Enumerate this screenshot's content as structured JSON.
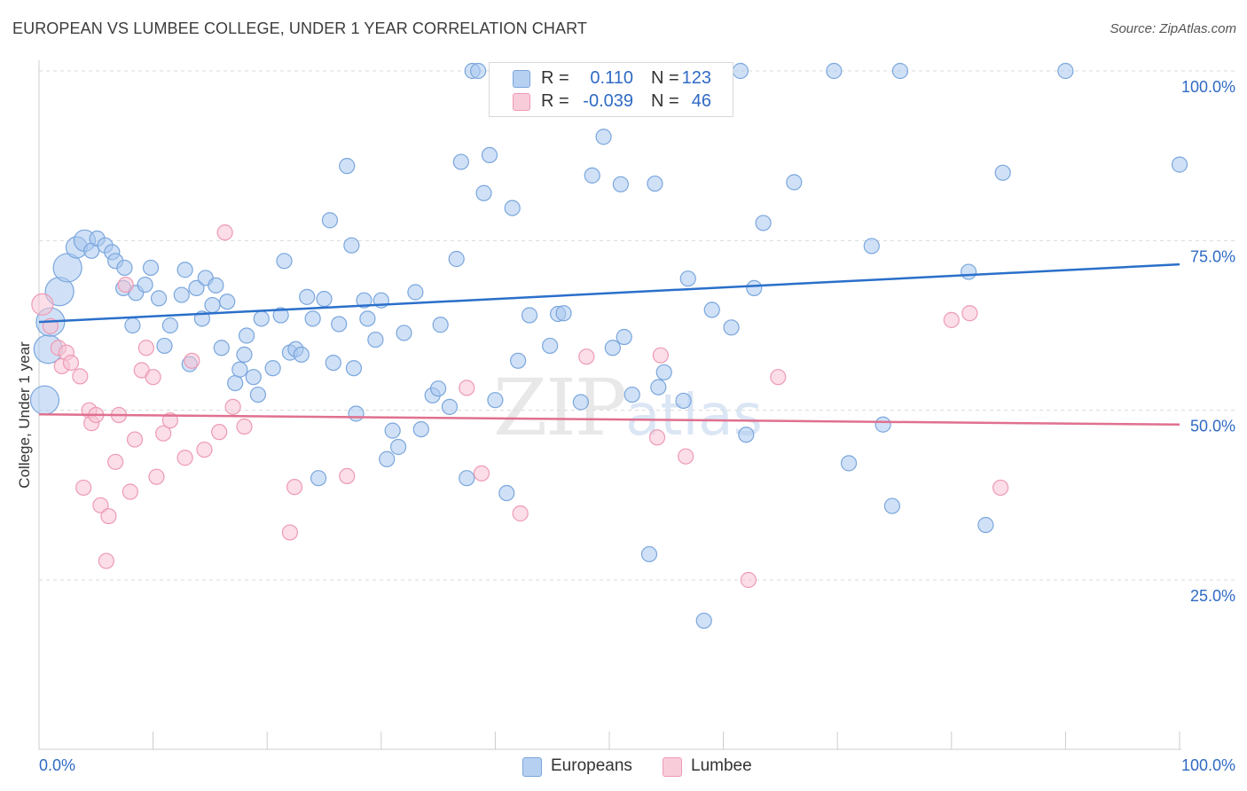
{
  "title": "EUROPEAN VS LUMBEE COLLEGE, UNDER 1 YEAR CORRELATION CHART",
  "source": "Source: ZipAtlas.com",
  "watermark": {
    "zip": "ZIP",
    "atlas": "atlas"
  },
  "legend": {
    "rows": [
      {
        "r_label": "R =",
        "r_value": "0.110",
        "n_label": "N =",
        "n_value": "123"
      },
      {
        "r_label": "R =",
        "r_value": "-0.039",
        "n_label": "N =",
        "n_value": "46"
      }
    ]
  },
  "bottom_legend": {
    "europeans": "Europeans",
    "lumbee": "Lumbee"
  },
  "colors": {
    "europeans_fill": "#a9c8f0",
    "europeans_stroke": "#7aa6dc",
    "europeans_line": "#2a6fca",
    "lumbee_fill": "#f7c3d3",
    "lumbee_stroke": "#ee9ab5",
    "lumbee_line": "#e0708f",
    "axis_label": "#2f6ac4",
    "grid": "#d9d9d9"
  },
  "chart_data": {
    "type": "scatter",
    "title": "EUROPEAN VS LUMBEE COLLEGE, UNDER 1 YEAR CORRELATION CHART",
    "xlabel": "",
    "ylabel": "College, Under 1 year",
    "xlim": [
      0,
      100
    ],
    "ylim": [
      0,
      105
    ],
    "x_tick_labels": [
      "0.0%",
      "100.0%"
    ],
    "y_tick_labels": [
      "25.0%",
      "50.0%",
      "75.0%",
      "100.0%"
    ],
    "y_ticks": [
      25,
      50,
      75,
      100
    ],
    "grid": "horizontal dashed",
    "legend_position": "top-center",
    "series": [
      {
        "name": "Europeans",
        "r": 0.11,
        "n": 123,
        "trend": {
          "x": [
            0,
            100
          ],
          "y": [
            63.0,
            71.5
          ]
        },
        "points": [
          [
            0.5,
            51.5,
            3
          ],
          [
            0.8,
            59,
            3
          ],
          [
            1.0,
            63,
            3
          ],
          [
            1.8,
            67.5,
            3
          ],
          [
            2.5,
            71,
            3
          ],
          [
            3.3,
            74,
            2
          ],
          [
            4.0,
            75,
            2
          ],
          [
            4.6,
            73.5,
            1
          ],
          [
            5.1,
            75.3,
            1
          ],
          [
            5.8,
            74.3,
            1
          ],
          [
            6.4,
            73.3,
            1
          ],
          [
            6.7,
            72,
            1
          ],
          [
            7.5,
            71,
            1
          ],
          [
            7.4,
            68,
            1
          ],
          [
            8.5,
            67.3,
            1
          ],
          [
            8.2,
            62.5,
            1
          ],
          [
            9.3,
            68.5,
            1
          ],
          [
            9.8,
            71,
            1
          ],
          [
            10.5,
            66.5,
            1
          ],
          [
            11.0,
            59.5,
            1
          ],
          [
            11.5,
            62.5,
            1
          ],
          [
            12.5,
            67,
            1
          ],
          [
            12.8,
            70.7,
            1
          ],
          [
            13.2,
            56.8,
            1
          ],
          [
            13.8,
            68,
            1
          ],
          [
            14.6,
            69.5,
            1
          ],
          [
            14.3,
            63.5,
            1
          ],
          [
            15.2,
            65.5,
            1
          ],
          [
            15.5,
            68.4,
            1
          ],
          [
            16.0,
            59.2,
            1
          ],
          [
            16.5,
            66,
            1
          ],
          [
            17.2,
            54,
            1
          ],
          [
            17.6,
            56,
            1
          ],
          [
            18.0,
            58.2,
            1
          ],
          [
            18.2,
            61,
            1
          ],
          [
            18.8,
            54.9,
            1
          ],
          [
            19.2,
            52.3,
            1
          ],
          [
            19.5,
            63.5,
            1
          ],
          [
            20.5,
            56.2,
            1
          ],
          [
            21.2,
            64,
            1
          ],
          [
            21.5,
            72,
            1
          ],
          [
            22.0,
            58.5,
            1
          ],
          [
            22.5,
            59,
            1
          ],
          [
            23.0,
            58.2,
            1
          ],
          [
            23.5,
            66.7,
            1
          ],
          [
            24.0,
            63.5,
            1
          ],
          [
            24.5,
            40,
            1
          ],
          [
            25.0,
            66.4,
            1
          ],
          [
            25.5,
            78,
            1
          ],
          [
            25.8,
            57,
            1
          ],
          [
            26.3,
            62.7,
            1
          ],
          [
            27.0,
            86,
            1
          ],
          [
            27.4,
            74.3,
            1
          ],
          [
            27.6,
            56.2,
            1
          ],
          [
            27.8,
            49.5,
            1
          ],
          [
            28.5,
            66.2,
            1
          ],
          [
            28.8,
            63.5,
            1
          ],
          [
            29.5,
            60.4,
            1
          ],
          [
            30.0,
            66.2,
            1
          ],
          [
            30.5,
            42.8,
            1
          ],
          [
            31.0,
            47,
            1
          ],
          [
            31.5,
            44.6,
            1
          ],
          [
            32.0,
            61.4,
            1
          ],
          [
            33.0,
            67.4,
            1
          ],
          [
            33.5,
            47.2,
            1
          ],
          [
            34.5,
            52.2,
            1
          ],
          [
            35.0,
            53.2,
            1
          ],
          [
            35.2,
            62.6,
            1
          ],
          [
            36.0,
            50.5,
            1
          ],
          [
            36.6,
            72.3,
            1
          ],
          [
            37.0,
            86.6,
            1
          ],
          [
            37.5,
            40,
            1
          ],
          [
            38.0,
            100,
            1
          ],
          [
            38.5,
            100,
            1
          ],
          [
            39.0,
            82,
            1
          ],
          [
            39.5,
            87.6,
            1
          ],
          [
            40.0,
            51.5,
            1
          ],
          [
            41.0,
            37.8,
            1
          ],
          [
            41.5,
            79.8,
            1
          ],
          [
            42.0,
            57.3,
            1
          ],
          [
            43.0,
            64,
            1
          ],
          [
            43.5,
            100,
            1
          ],
          [
            44.0,
            97,
            1
          ],
          [
            44.8,
            59.5,
            1
          ],
          [
            45.5,
            64.2,
            1
          ],
          [
            46.0,
            64.3,
            1
          ],
          [
            47.0,
            100,
            1
          ],
          [
            47.5,
            51.2,
            1
          ],
          [
            48.5,
            84.6,
            1
          ],
          [
            48.8,
            100,
            1
          ],
          [
            49.5,
            90.3,
            1
          ],
          [
            50.3,
            59.2,
            1
          ],
          [
            51.0,
            83.3,
            1
          ],
          [
            51.3,
            60.8,
            1
          ],
          [
            52.0,
            52.3,
            1
          ],
          [
            52.5,
            100,
            1
          ],
          [
            53.5,
            28.8,
            1
          ],
          [
            54.0,
            83.4,
            1
          ],
          [
            54.3,
            53.4,
            1
          ],
          [
            54.8,
            55.6,
            1
          ],
          [
            56.5,
            51.4,
            1
          ],
          [
            56.9,
            69.4,
            1
          ],
          [
            58.3,
            19,
            1
          ],
          [
            59.0,
            64.8,
            1
          ],
          [
            60.7,
            62.2,
            1
          ],
          [
            61.5,
            100,
            1
          ],
          [
            62.0,
            46.4,
            1
          ],
          [
            62.7,
            68,
            1
          ],
          [
            63.5,
            77.6,
            1
          ],
          [
            66.2,
            83.6,
            1
          ],
          [
            69.7,
            100,
            1
          ],
          [
            71.0,
            42.2,
            1
          ],
          [
            73.0,
            74.2,
            1
          ],
          [
            74.0,
            47.9,
            1
          ],
          [
            74.8,
            35.9,
            1
          ],
          [
            75.5,
            100,
            1
          ],
          [
            81.5,
            70.4,
            1
          ],
          [
            83.0,
            33.1,
            1
          ],
          [
            84.5,
            85,
            1
          ],
          [
            90.0,
            100,
            1
          ],
          [
            100.0,
            86.2,
            1
          ],
          [
            42.5,
            100,
            1
          ],
          [
            57.0,
            100,
            1
          ]
        ]
      },
      {
        "name": "Lumbee",
        "r": -0.039,
        "n": 46,
        "trend": {
          "x": [
            0,
            100
          ],
          "y": [
            49.4,
            47.9
          ]
        },
        "points": [
          [
            0.3,
            65.6,
            2
          ],
          [
            1.0,
            62.4,
            1
          ],
          [
            1.7,
            59.2,
            1
          ],
          [
            2.0,
            56.5,
            1
          ],
          [
            2.4,
            58.5,
            1
          ],
          [
            2.8,
            57,
            1
          ],
          [
            3.6,
            55,
            1
          ],
          [
            3.9,
            38.6,
            1
          ],
          [
            4.4,
            50,
            1
          ],
          [
            4.6,
            48.1,
            1
          ],
          [
            5.0,
            49.3,
            1
          ],
          [
            5.4,
            36,
            1
          ],
          [
            5.9,
            27.8,
            1
          ],
          [
            6.1,
            34.4,
            1
          ],
          [
            6.7,
            42.4,
            1
          ],
          [
            7.0,
            49.3,
            1
          ],
          [
            7.6,
            68.5,
            1
          ],
          [
            8.0,
            38,
            1
          ],
          [
            8.4,
            45.7,
            1
          ],
          [
            9.0,
            55.9,
            1
          ],
          [
            9.4,
            59.2,
            1
          ],
          [
            10.0,
            54.9,
            1
          ],
          [
            10.3,
            40.2,
            1
          ],
          [
            10.9,
            46.6,
            1
          ],
          [
            11.5,
            48.5,
            1
          ],
          [
            12.8,
            43,
            1
          ],
          [
            13.4,
            57.3,
            1
          ],
          [
            14.5,
            44.2,
            1
          ],
          [
            15.8,
            46.8,
            1
          ],
          [
            16.3,
            76.2,
            1
          ],
          [
            17.0,
            50.5,
            1
          ],
          [
            18.0,
            47.6,
            1
          ],
          [
            22.0,
            32,
            1
          ],
          [
            22.4,
            38.7,
            1
          ],
          [
            27.0,
            40.3,
            1
          ],
          [
            37.5,
            53.3,
            1
          ],
          [
            38.8,
            40.7,
            1
          ],
          [
            42.2,
            34.8,
            1
          ],
          [
            48.0,
            57.9,
            1
          ],
          [
            54.2,
            46,
            1
          ],
          [
            54.5,
            58.1,
            1
          ],
          [
            56.7,
            43.2,
            1
          ],
          [
            62.2,
            25,
            1
          ],
          [
            64.8,
            54.9,
            1
          ],
          [
            80.0,
            63.3,
            1
          ],
          [
            81.6,
            64.3,
            1
          ],
          [
            84.3,
            38.6,
            1
          ]
        ]
      }
    ]
  }
}
